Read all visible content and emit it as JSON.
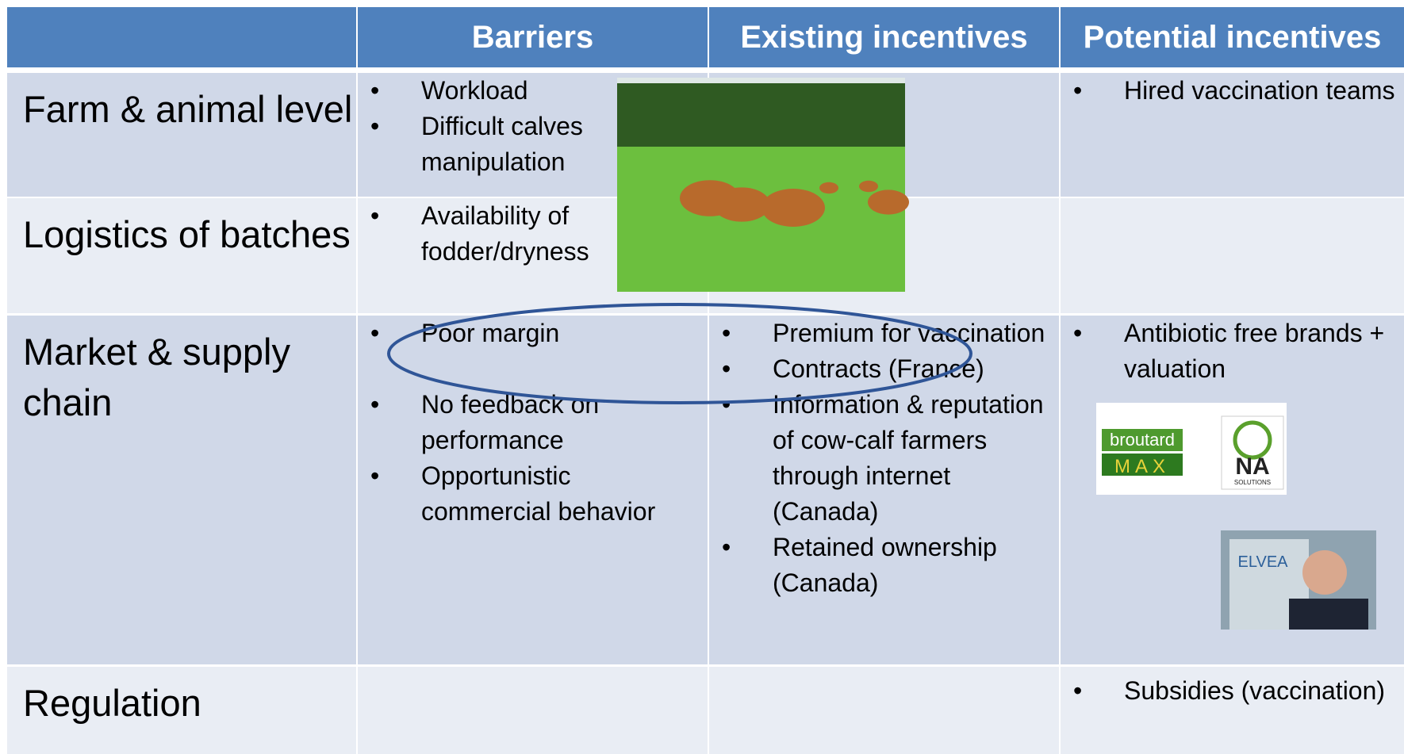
{
  "table": {
    "header": [
      "Barriers",
      "Existing incentives",
      "Potential incentives"
    ],
    "rows": [
      {
        "label": "Farm & animal level",
        "barriers": [
          "Workload",
          "Difficult calves manipulation"
        ],
        "existing": [],
        "potential": [
          "Hired vaccination teams"
        ]
      },
      {
        "label": "Logistics of batches",
        "barriers": [
          "Availability of fodder/dryness"
        ],
        "existing": [],
        "potential": []
      },
      {
        "label": "Market & supply chain",
        "barriers": [
          "Poor margin",
          "No feedback on performance",
          "Opportunistic commercial behavior"
        ],
        "existing": [
          "Premium for vaccination",
          "Contracts (France)",
          "Information & reputation of cow-calf farmers through internet (Canada)",
          "Retained ownership (Canada)"
        ],
        "potential": [
          "Antibiotic free brands + valuation"
        ]
      },
      {
        "label": "Regulation",
        "barriers": [],
        "existing": [],
        "potential": [
          "Subsidies (vaccination)"
        ]
      }
    ]
  },
  "images": {
    "logo1_top": "broutard",
    "logo1_bottom": "MAX",
    "logo2_top": "NA",
    "logo2_bottom": "SOLUTIONS",
    "photo_banner": "ELVEA"
  }
}
